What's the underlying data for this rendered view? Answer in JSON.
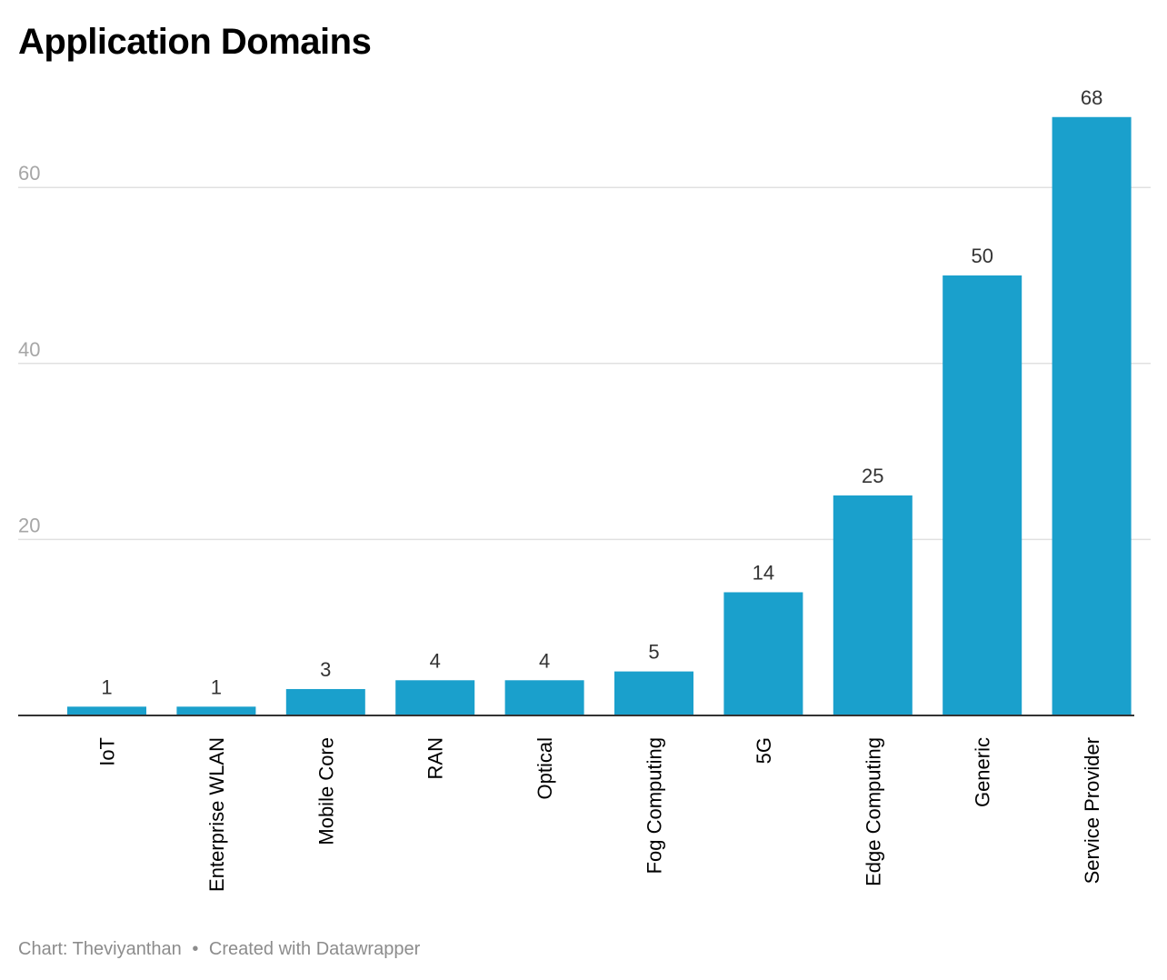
{
  "chart_data": {
    "type": "bar",
    "title": "Application Domains",
    "categories": [
      "IoT",
      "Enterprise WLAN",
      "Mobile Core",
      "RAN",
      "Optical",
      "Fog Computing",
      "5G",
      "Edge Computing",
      "Generic",
      "Service Provider"
    ],
    "values": [
      1,
      1,
      3,
      4,
      4,
      5,
      14,
      25,
      50,
      68
    ],
    "y_ticks": [
      20,
      40,
      60
    ],
    "ylim": [
      0,
      68
    ],
    "grid": true,
    "bar_color": "#1aa0cc",
    "data_labels": true,
    "xlabel": "",
    "ylabel": ""
  },
  "footer": {
    "source": "Chart: Theviyanthan",
    "separator": "•",
    "credit": "Created with Datawrapper"
  },
  "colors": {
    "grid": "#e0e0e0",
    "tick_label": "#a6a6a6",
    "axis": "#333333",
    "value_label": "#333333",
    "category_label": "#000000"
  }
}
